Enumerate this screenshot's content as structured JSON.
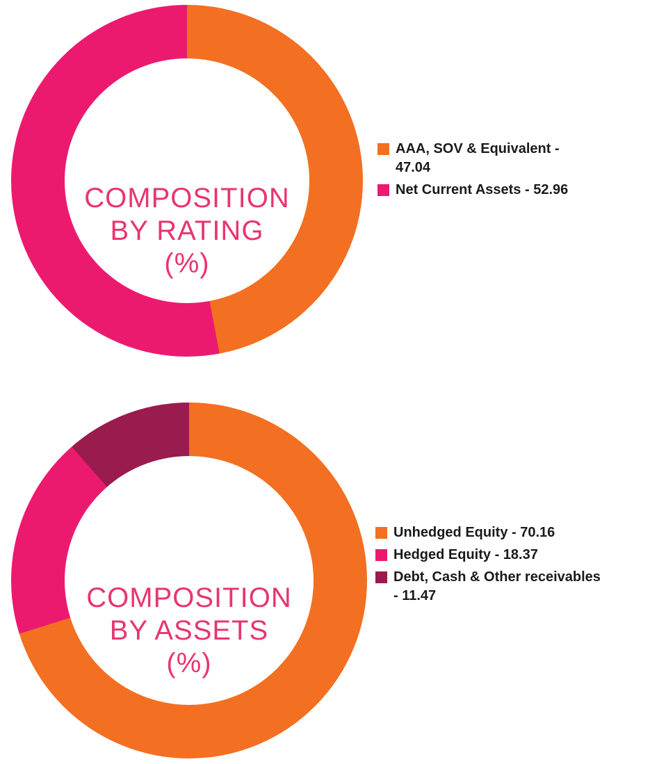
{
  "styles": {
    "background": "#FFFFFF",
    "title_color": "#E8356F",
    "legend_text_color": "#1A1A1A",
    "orange": "#F36F21",
    "pink": "#EC1A6F",
    "maroon": "#9A1B4E"
  },
  "chart_data": [
    {
      "type": "pie",
      "donut": true,
      "title": "COMPOSITION BY RATING (%)",
      "title_lines": [
        "COMPOSITION",
        "BY RATING",
        "(%)"
      ],
      "start_angle_deg": 0,
      "direction": "clockwise",
      "legend_position": "right",
      "labels": [
        "AAA, SOV & Equivalent",
        "Net Current Assets"
      ],
      "values": [
        47.04,
        52.96
      ],
      "colors": [
        "#F36F21",
        "#EC1A6F"
      ],
      "legend": [
        {
          "color": "#F36F21",
          "label": "AAA, SOV & Equivalent - 47.04",
          "lines": [
            "AAA, SOV & Equivalent -",
            "47.04"
          ]
        },
        {
          "color": "#EC1A6F",
          "label": "Net Current Assets - 52.96",
          "lines": [
            "Net Current Assets - 52.96"
          ]
        }
      ]
    },
    {
      "type": "pie",
      "donut": true,
      "title": "COMPOSITION BY ASSETS (%)",
      "title_lines": [
        "COMPOSITION",
        "BY ASSETS",
        "(%)"
      ],
      "start_angle_deg": 0,
      "direction": "clockwise",
      "legend_position": "right",
      "labels": [
        "Unhedged Equity",
        "Hedged Equity",
        "Debt, Cash & Other receivables"
      ],
      "values": [
        70.16,
        18.37,
        11.47
      ],
      "colors": [
        "#F36F21",
        "#EC1A6F",
        "#9A1B4E"
      ],
      "legend": [
        {
          "color": "#F36F21",
          "label": "Unhedged Equity - 70.16",
          "lines": [
            "Unhedged Equity - 70.16"
          ]
        },
        {
          "color": "#EC1A6F",
          "label": "Hedged Equity - 18.37",
          "lines": [
            "Hedged Equity - 18.37"
          ]
        },
        {
          "color": "#9A1B4E",
          "label": "Debt, Cash & Other receivables - 11.47",
          "lines": [
            "Debt, Cash & Other receivables",
            "- 11.47"
          ]
        }
      ]
    }
  ]
}
